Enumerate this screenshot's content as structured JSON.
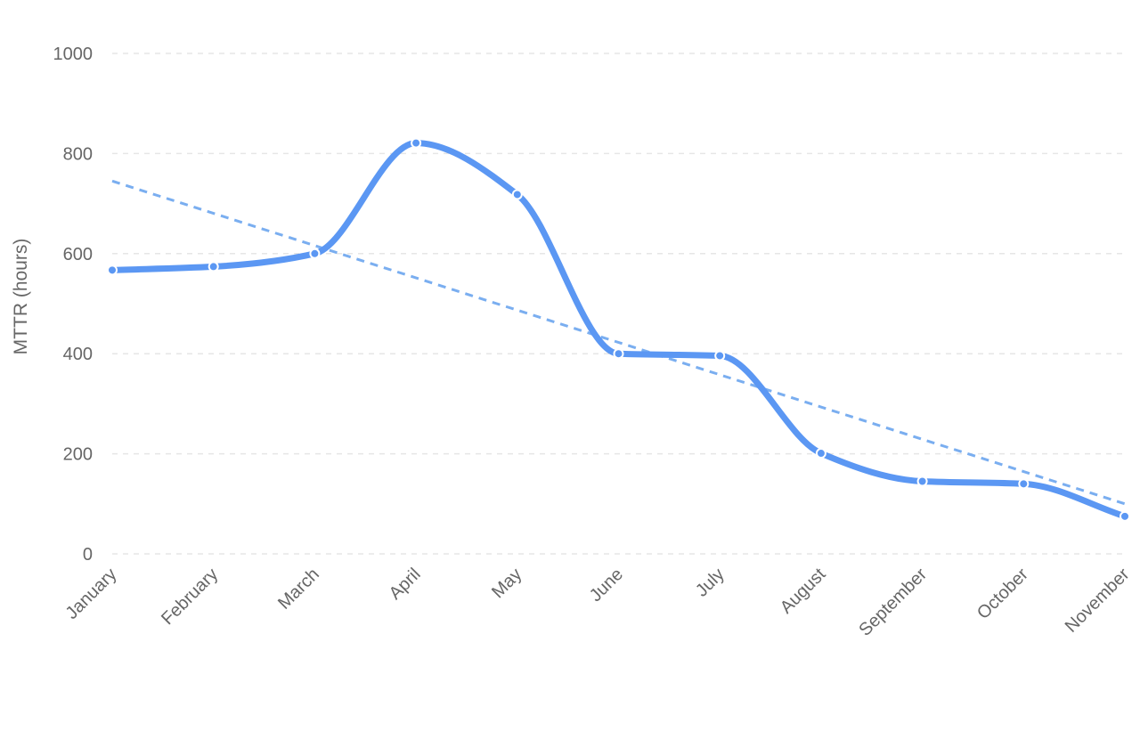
{
  "chart_data": {
    "type": "line",
    "title": "",
    "xlabel": "",
    "ylabel": "MTTR (hours)",
    "categories": [
      "January",
      "February",
      "March",
      "April",
      "May",
      "June",
      "July",
      "August",
      "September",
      "October",
      "November"
    ],
    "series": [
      {
        "values": [
          567,
          574,
          600,
          821,
          718,
          400,
          396,
          201,
          145,
          140,
          75
        ],
        "color": "#5b97f3",
        "smooth": true,
        "markers": true
      }
    ],
    "trendline": {
      "style": "dashed",
      "color": "#7aaef0",
      "start": 745,
      "end": 100
    },
    "ylim": [
      0,
      1000
    ],
    "yticks": [
      0,
      200,
      400,
      600,
      800,
      1000
    ],
    "grid": "horizontal-dashed",
    "legend": "none"
  }
}
